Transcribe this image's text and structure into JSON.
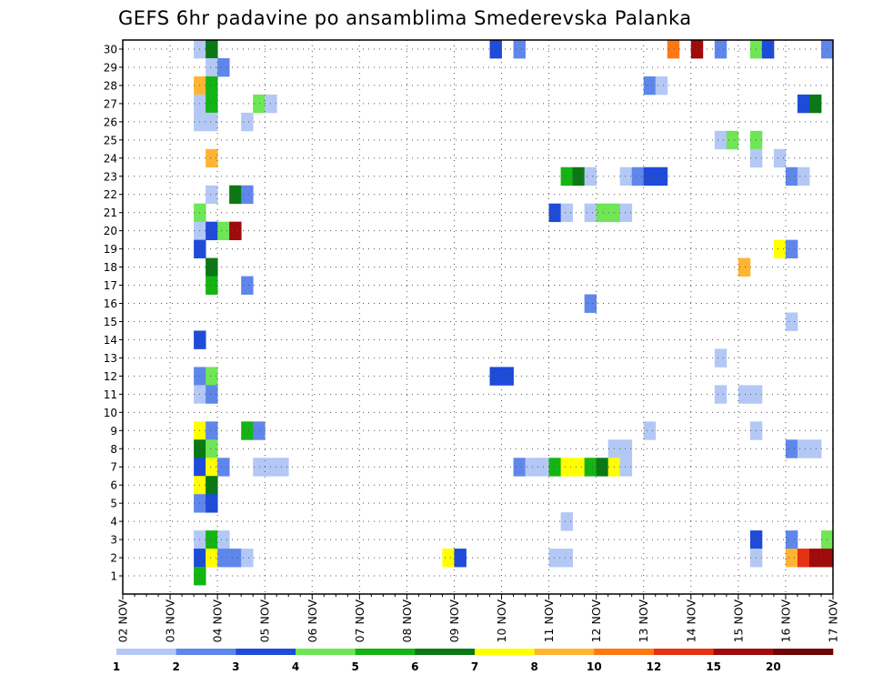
{
  "chart_data": {
    "type": "heatmap",
    "title": "GEFS 6hr padavine po ansamblima Smederevska Palanka",
    "xlabel": "",
    "ylabel": "",
    "x_categories": [
      "02 NOV",
      "03 NOV",
      "04 NOV",
      "05 NOV",
      "06 NOV",
      "07 NOV",
      "08 NOV",
      "09 NOV",
      "10 NOV",
      "11 NOV",
      "12 NOV",
      "13 NOV",
      "14 NOV",
      "15 NOV",
      "16 NOV",
      "17 NOV"
    ],
    "x_steps_per_day": 4,
    "xlim_steps": [
      0,
      60
    ],
    "y_categories": [
      "1",
      "2",
      "3",
      "4",
      "5",
      "6",
      "7",
      "8",
      "9",
      "10",
      "11",
      "12",
      "13",
      "14",
      "15",
      "16",
      "17",
      "18",
      "19",
      "20",
      "21",
      "22",
      "23",
      "24",
      "25",
      "26",
      "27",
      "28",
      "29",
      "30"
    ],
    "legend": {
      "bounds": [
        "1",
        "2",
        "3",
        "4",
        "5",
        "6",
        "7",
        "8",
        "10",
        "12",
        "15",
        "20",
        ""
      ],
      "colors": [
        "#b4c8f5",
        "#5f87eb",
        "#1e4bd7",
        "#6ee655",
        "#14b414",
        "#0a7814",
        "#ffff00",
        "#ffb432",
        "#ff7814",
        "#e63214",
        "#a00a0a",
        "#6e0505"
      ]
    },
    "cells": [
      {
        "m": 30,
        "t": 6,
        "c": 0
      },
      {
        "m": 30,
        "t": 7,
        "c": 5
      },
      {
        "m": 30,
        "t": 31,
        "c": 2
      },
      {
        "m": 30,
        "t": 33,
        "c": 1
      },
      {
        "m": 30,
        "t": 46,
        "c": 8
      },
      {
        "m": 30,
        "t": 48,
        "c": 10
      },
      {
        "m": 30,
        "t": 50,
        "c": 1
      },
      {
        "m": 30,
        "t": 53,
        "c": 3
      },
      {
        "m": 30,
        "t": 54,
        "c": 2
      },
      {
        "m": 30,
        "t": 59,
        "c": 1
      },
      {
        "m": 29,
        "t": 7,
        "c": 0
      },
      {
        "m": 29,
        "t": 8,
        "c": 1
      },
      {
        "m": 28,
        "t": 6,
        "c": 7
      },
      {
        "m": 28,
        "t": 7,
        "c": 4
      },
      {
        "m": 28,
        "t": 44,
        "c": 1
      },
      {
        "m": 28,
        "t": 45,
        "c": 0
      },
      {
        "m": 27,
        "t": 6,
        "c": 0
      },
      {
        "m": 27,
        "t": 7,
        "c": 4
      },
      {
        "m": 27,
        "t": 11,
        "c": 3
      },
      {
        "m": 27,
        "t": 12,
        "c": 0
      },
      {
        "m": 27,
        "t": 57,
        "c": 2
      },
      {
        "m": 27,
        "t": 58,
        "c": 5
      },
      {
        "m": 26,
        "t": 6,
        "c": 0
      },
      {
        "m": 26,
        "t": 7,
        "c": 0
      },
      {
        "m": 26,
        "t": 10,
        "c": 0
      },
      {
        "m": 25,
        "t": 50,
        "c": 0
      },
      {
        "m": 25,
        "t": 51,
        "c": 3
      },
      {
        "m": 25,
        "t": 53,
        "c": 3
      },
      {
        "m": 24,
        "t": 7,
        "c": 7
      },
      {
        "m": 24,
        "t": 53,
        "c": 0
      },
      {
        "m": 24,
        "t": 55,
        "c": 0
      },
      {
        "m": 23,
        "t": 37,
        "c": 4
      },
      {
        "m": 23,
        "t": 38,
        "c": 5
      },
      {
        "m": 23,
        "t": 39,
        "c": 0
      },
      {
        "m": 23,
        "t": 42,
        "c": 0
      },
      {
        "m": 23,
        "t": 43,
        "c": 1
      },
      {
        "m": 23,
        "t": 44,
        "c": 2
      },
      {
        "m": 23,
        "t": 45,
        "c": 2
      },
      {
        "m": 23,
        "t": 56,
        "c": 1
      },
      {
        "m": 23,
        "t": 57,
        "c": 0
      },
      {
        "m": 22,
        "t": 7,
        "c": 0
      },
      {
        "m": 22,
        "t": 9,
        "c": 5
      },
      {
        "m": 22,
        "t": 10,
        "c": 1
      },
      {
        "m": 21,
        "t": 6,
        "c": 3
      },
      {
        "m": 21,
        "t": 36,
        "c": 2
      },
      {
        "m": 21,
        "t": 37,
        "c": 0
      },
      {
        "m": 21,
        "t": 39,
        "c": 0
      },
      {
        "m": 21,
        "t": 40,
        "c": 3
      },
      {
        "m": 21,
        "t": 41,
        "c": 3
      },
      {
        "m": 21,
        "t": 42,
        "c": 0
      },
      {
        "m": 20,
        "t": 6,
        "c": 0
      },
      {
        "m": 20,
        "t": 7,
        "c": 2
      },
      {
        "m": 20,
        "t": 8,
        "c": 3
      },
      {
        "m": 20,
        "t": 9,
        "c": 10
      },
      {
        "m": 19,
        "t": 6,
        "c": 2
      },
      {
        "m": 19,
        "t": 55,
        "c": 6
      },
      {
        "m": 19,
        "t": 56,
        "c": 1
      },
      {
        "m": 18,
        "t": 7,
        "c": 5
      },
      {
        "m": 18,
        "t": 52,
        "c": 7
      },
      {
        "m": 17,
        "t": 7,
        "c": 4
      },
      {
        "m": 17,
        "t": 10,
        "c": 1
      },
      {
        "m": 16,
        "t": 39,
        "c": 1
      },
      {
        "m": 15,
        "t": 56,
        "c": 0
      },
      {
        "m": 14,
        "t": 6,
        "c": 2
      },
      {
        "m": 13,
        "t": 50,
        "c": 0
      },
      {
        "m": 12,
        "t": 6,
        "c": 1
      },
      {
        "m": 12,
        "t": 7,
        "c": 3
      },
      {
        "m": 12,
        "t": 31,
        "c": 2
      },
      {
        "m": 12,
        "t": 32,
        "c": 2
      },
      {
        "m": 11,
        "t": 6,
        "c": 0
      },
      {
        "m": 11,
        "t": 7,
        "c": 1
      },
      {
        "m": 11,
        "t": 50,
        "c": 0
      },
      {
        "m": 11,
        "t": 52,
        "c": 0
      },
      {
        "m": 11,
        "t": 53,
        "c": 0
      },
      {
        "m": 9,
        "t": 6,
        "c": 6
      },
      {
        "m": 9,
        "t": 7,
        "c": 1
      },
      {
        "m": 9,
        "t": 10,
        "c": 4
      },
      {
        "m": 9,
        "t": 11,
        "c": 1
      },
      {
        "m": 9,
        "t": 44,
        "c": 0
      },
      {
        "m": 9,
        "t": 53,
        "c": 0
      },
      {
        "m": 8,
        "t": 6,
        "c": 5
      },
      {
        "m": 8,
        "t": 7,
        "c": 3
      },
      {
        "m": 8,
        "t": 41,
        "c": 0
      },
      {
        "m": 8,
        "t": 42,
        "c": 0
      },
      {
        "m": 8,
        "t": 56,
        "c": 1
      },
      {
        "m": 8,
        "t": 57,
        "c": 0
      },
      {
        "m": 8,
        "t": 58,
        "c": 0
      },
      {
        "m": 7,
        "t": 6,
        "c": 2
      },
      {
        "m": 7,
        "t": 7,
        "c": 6
      },
      {
        "m": 7,
        "t": 8,
        "c": 1
      },
      {
        "m": 7,
        "t": 11,
        "c": 0
      },
      {
        "m": 7,
        "t": 12,
        "c": 0
      },
      {
        "m": 7,
        "t": 13,
        "c": 0
      },
      {
        "m": 7,
        "t": 33,
        "c": 1
      },
      {
        "m": 7,
        "t": 34,
        "c": 0
      },
      {
        "m": 7,
        "t": 35,
        "c": 0
      },
      {
        "m": 7,
        "t": 36,
        "c": 4
      },
      {
        "m": 7,
        "t": 37,
        "c": 6
      },
      {
        "m": 7,
        "t": 38,
        "c": 6
      },
      {
        "m": 7,
        "t": 39,
        "c": 4
      },
      {
        "m": 7,
        "t": 40,
        "c": 5
      },
      {
        "m": 7,
        "t": 41,
        "c": 6
      },
      {
        "m": 7,
        "t": 42,
        "c": 0
      },
      {
        "m": 6,
        "t": 6,
        "c": 6
      },
      {
        "m": 6,
        "t": 7,
        "c": 5
      },
      {
        "m": 5,
        "t": 6,
        "c": 1
      },
      {
        "m": 5,
        "t": 7,
        "c": 2
      },
      {
        "m": 4,
        "t": 37,
        "c": 0
      },
      {
        "m": 3,
        "t": 6,
        "c": 0
      },
      {
        "m": 3,
        "t": 7,
        "c": 4
      },
      {
        "m": 3,
        "t": 8,
        "c": 0
      },
      {
        "m": 3,
        "t": 53,
        "c": 2
      },
      {
        "m": 3,
        "t": 56,
        "c": 1
      },
      {
        "m": 3,
        "t": 59,
        "c": 3
      },
      {
        "m": 2,
        "t": 6,
        "c": 2
      },
      {
        "m": 2,
        "t": 7,
        "c": 6
      },
      {
        "m": 2,
        "t": 8,
        "c": 1
      },
      {
        "m": 2,
        "t": 9,
        "c": 1
      },
      {
        "m": 2,
        "t": 10,
        "c": 0
      },
      {
        "m": 2,
        "t": 27,
        "c": 6
      },
      {
        "m": 2,
        "t": 28,
        "c": 2
      },
      {
        "m": 2,
        "t": 36,
        "c": 0
      },
      {
        "m": 2,
        "t": 37,
        "c": 0
      },
      {
        "m": 2,
        "t": 53,
        "c": 0
      },
      {
        "m": 2,
        "t": 56,
        "c": 7
      },
      {
        "m": 2,
        "t": 57,
        "c": 9
      },
      {
        "m": 2,
        "t": 58,
        "c": 10
      },
      {
        "m": 2,
        "t": 59,
        "c": 10
      },
      {
        "m": 1,
        "t": 6,
        "c": 4
      }
    ]
  }
}
